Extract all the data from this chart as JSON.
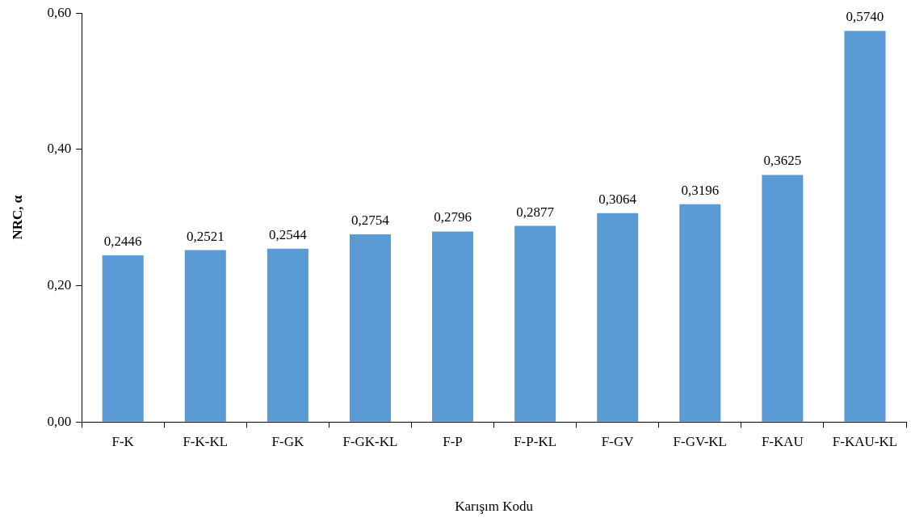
{
  "chart_data": {
    "type": "bar",
    "xlabel": "Karışım Kodu",
    "ylabel": "NRC, α",
    "categories": [
      "F-K",
      "F-K-KL",
      "F-GK",
      "F-GK-KL",
      "F-P",
      "F-P-KL",
      "F-GV",
      "F-GV-KL",
      "F-KAU",
      "F-KAU-KL"
    ],
    "values": [
      0.2446,
      0.2521,
      0.2544,
      0.2754,
      0.2796,
      0.2877,
      0.3064,
      0.3196,
      0.3625,
      0.574
    ],
    "value_labels": [
      "0,2446",
      "0,2521",
      "0,2544",
      "0,2754",
      "0,2796",
      "0,2877",
      "0,3064",
      "0,3196",
      "0,3625",
      "0,5740"
    ],
    "color": "#5b9bd5",
    "ylim": [
      0,
      0.6
    ],
    "yticks": [
      {
        "value": 0,
        "label": "0,00"
      },
      {
        "value": 0.2,
        "label": "0,20"
      },
      {
        "value": 0.4,
        "label": "0,40"
      },
      {
        "value": 0.6,
        "label": "0,60"
      }
    ],
    "grid": false,
    "legend": false
  }
}
